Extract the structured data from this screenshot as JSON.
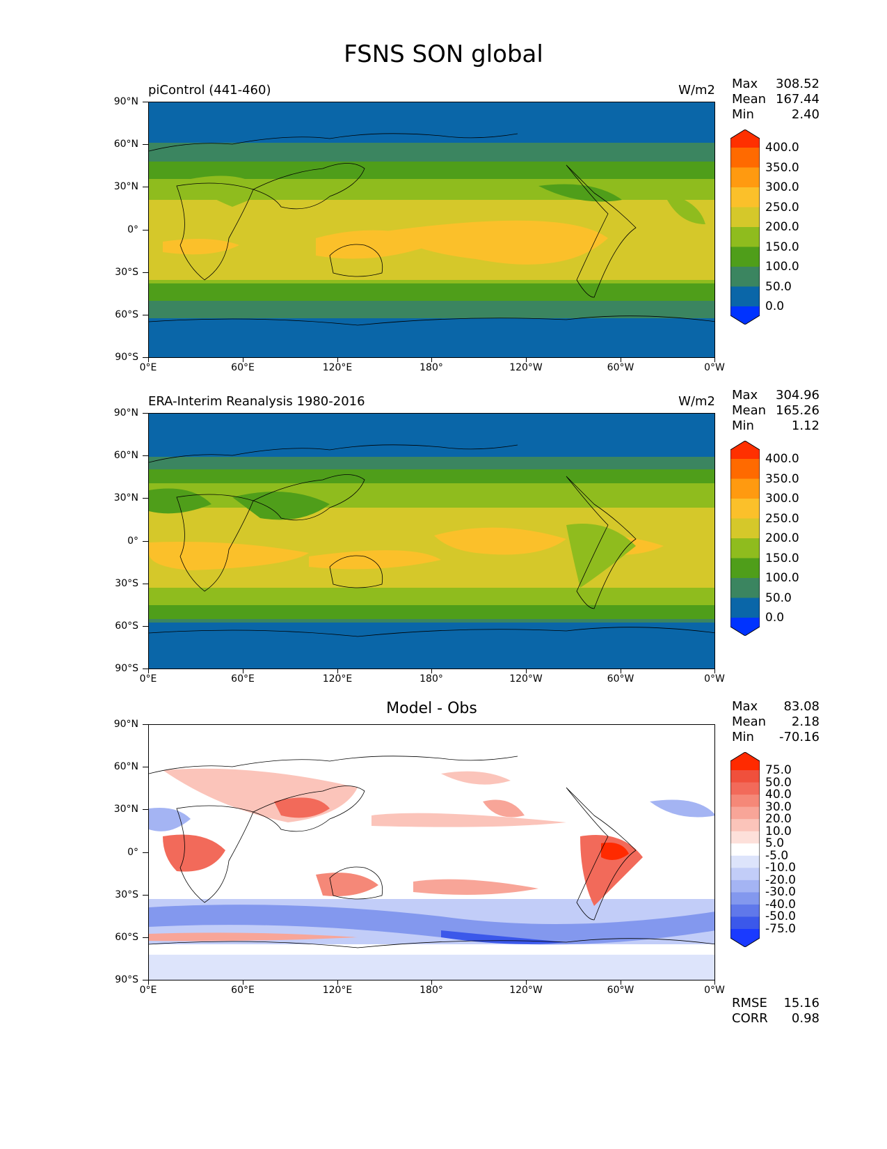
{
  "title": "FSNS SON global",
  "lat_labels": [
    "90°N",
    "60°N",
    "30°N",
    "0°",
    "30°S",
    "60°S",
    "90°S"
  ],
  "lon_labels": [
    "0°E",
    "60°E",
    "120°E",
    "180°",
    "120°W",
    "60°W",
    "0°W"
  ],
  "panels": [
    {
      "id": "test",
      "title": "piControl (441-460)",
      "units": "W/m2",
      "stats": {
        "max_label": "Max",
        "max": "308.52",
        "mean_label": "Mean",
        "mean": "167.44",
        "min_label": "Min",
        "min": "2.40"
      },
      "colorbar_labels": [
        "400.0",
        "350.0",
        "300.0",
        "250.0",
        "200.0",
        "150.0",
        "100.0",
        "50.0",
        "0.0"
      ],
      "colorbar_colors": [
        "#ff3000",
        "#ff6a00",
        "#ff9a10",
        "#fbc02a",
        "#d5c82a",
        "#8fbc1e",
        "#4f9e1a",
        "#3b8560",
        "#0a66a8",
        "#0033ff"
      ]
    },
    {
      "id": "reference",
      "title": "ERA-Interim Reanalysis 1980-2016",
      "units": "W/m2",
      "stats": {
        "max_label": "Max",
        "max": "304.96",
        "mean_label": "Mean",
        "mean": "165.26",
        "min_label": "Min",
        "min": "1.12"
      },
      "colorbar_labels": [
        "400.0",
        "350.0",
        "300.0",
        "250.0",
        "200.0",
        "150.0",
        "100.0",
        "50.0",
        "0.0"
      ],
      "colorbar_colors": [
        "#ff3000",
        "#ff6a00",
        "#ff9a10",
        "#fbc02a",
        "#d5c82a",
        "#8fbc1e",
        "#4f9e1a",
        "#3b8560",
        "#0a66a8",
        "#0033ff"
      ]
    },
    {
      "id": "diff",
      "title": "Model - Obs",
      "stats": {
        "max_label": "Max",
        "max": "83.08",
        "mean_label": "Mean",
        "mean": "2.18",
        "min_label": "Min",
        "min": "-70.16"
      },
      "colorbar_labels": [
        "75.0",
        "50.0",
        "40.0",
        "30.0",
        "20.0",
        "10.0",
        "5.0",
        "-5.0",
        "-10.0",
        "-20.0",
        "-30.0",
        "-40.0",
        "-50.0",
        "-75.0"
      ],
      "colorbar_colors": [
        "#ff2a00",
        "#f0503c",
        "#f26a5a",
        "#f58878",
        "#f8a598",
        "#fbc4ba",
        "#fde0da",
        "#ffffff",
        "#dde4fb",
        "#c2cdf8",
        "#a4b4f3",
        "#8398ee",
        "#6078ea",
        "#3b58ea",
        "#1a3aff"
      ],
      "error_stats": {
        "rmse_label": "RMSE",
        "rmse": "15.16",
        "corr_label": "CORR",
        "corr": "0.98"
      }
    }
  ]
}
